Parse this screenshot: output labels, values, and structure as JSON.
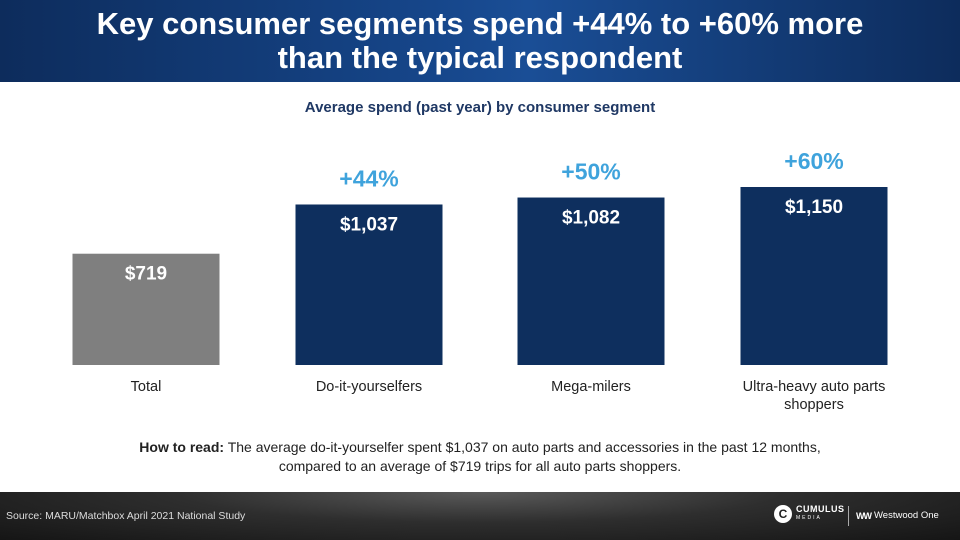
{
  "header": {
    "title": "Key consumer segments spend +44% to +60% more\nthan the typical respondent"
  },
  "chart_data": {
    "type": "bar",
    "title": "Average spend (past year) by consumer segment",
    "categories": [
      "Total",
      "Do-it-yourselfers",
      "Mega-milers",
      "Ultra-heavy auto parts shoppers"
    ],
    "values": [
      719,
      1037,
      1082,
      1150
    ],
    "value_labels": [
      "$719",
      "$1,037",
      "$1,082",
      "$1,150"
    ],
    "lift_labels": [
      "",
      "+44%",
      "+50%",
      "+60%"
    ],
    "colors": [
      "#7f7f7f",
      "#0e2f5e",
      "#0e2f5e",
      "#0e2f5e"
    ],
    "lift_color": "#3fa3dc",
    "ylim": [
      0,
      1150
    ]
  },
  "how_to_read": {
    "label": "How to read:",
    "text": " The average do-it-yourselfer spent $1,037 on auto parts and accessories in the past 12 months, compared to an average of $719 trips for all auto parts shoppers."
  },
  "footer": {
    "source": "Source: MARU/Matchbox April 2021 National Study",
    "logo_cumulus": "CUMULUS",
    "logo_cumulus_sub": "MEDIA",
    "logo_westwood": "Westwood One"
  }
}
